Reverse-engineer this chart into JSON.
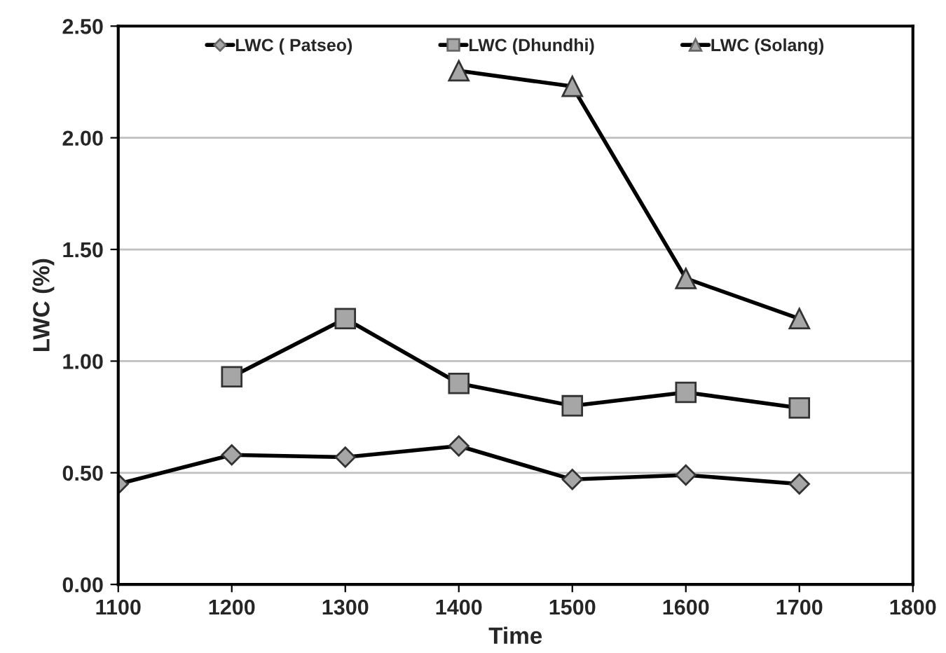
{
  "chart_data": {
    "type": "line",
    "xlabel": "Time",
    "ylabel": "LWC (%)",
    "xlim": [
      1100,
      1800
    ],
    "xticks": [
      1100,
      1200,
      1300,
      1400,
      1500,
      1600,
      1700,
      1800
    ],
    "ylim": [
      0,
      2.5
    ],
    "yticks": [
      {
        "value": 0,
        "label": "0.00"
      },
      {
        "value": 0.5,
        "label": "0.50"
      },
      {
        "value": 1.0,
        "label": "1.00"
      },
      {
        "value": 1.5,
        "label": "1.50"
      },
      {
        "value": 2.0,
        "label": "2.00"
      },
      {
        "value": 2.5,
        "label": "2.50"
      }
    ],
    "grid": "y",
    "legend": "top",
    "line_style": "solid",
    "series": [
      {
        "name": "LWC ( Patseo)",
        "color": "#000000",
        "marker": "diamond",
        "x": [
          1100,
          1200,
          1300,
          1400,
          1500,
          1600,
          1700
        ],
        "values": [
          0.45,
          0.58,
          0.57,
          0.62,
          0.47,
          0.49,
          0.45
        ]
      },
      {
        "name": "LWC (Dhundhi)",
        "color": "#000000",
        "marker": "square",
        "x": [
          1200,
          1300,
          1400,
          1500,
          1600,
          1700
        ],
        "values": [
          0.93,
          1.19,
          0.9,
          0.8,
          0.86,
          0.79
        ]
      },
      {
        "name": "LWC (Solang)",
        "color": "#000000",
        "marker": "triangle",
        "x": [
          1400,
          1500,
          1600,
          1700
        ],
        "values": [
          2.3,
          2.23,
          1.37,
          1.19
        ]
      }
    ]
  }
}
